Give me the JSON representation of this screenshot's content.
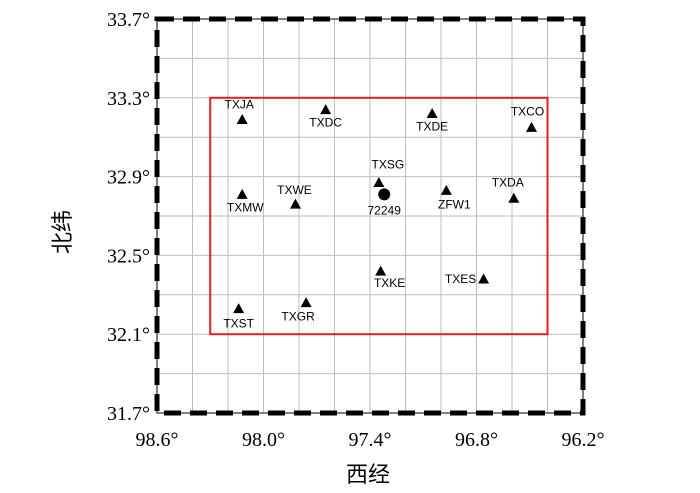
{
  "chart_data": {
    "type": "scatter",
    "xlabel": "西经",
    "ylabel": "北纬",
    "xlim": [
      98.6,
      96.2
    ],
    "ylim": [
      31.7,
      33.7
    ],
    "x_ticks": [
      "98.6°",
      "98.0°",
      "97.4°",
      "96.8°",
      "96.2°"
    ],
    "y_ticks": [
      "33.7°",
      "33.3°",
      "32.9°",
      "32.5°",
      "32.1°",
      "31.7°"
    ],
    "grid": true,
    "study_area": {
      "lon_min": 96.4,
      "lon_max": 98.3,
      "lat_min": 32.1,
      "lat_max": 33.3,
      "color": "#e0211a"
    },
    "stations": [
      {
        "name": "TXJA",
        "lon": 98.12,
        "lat": 33.19,
        "label": "TXJA",
        "marker": "triangle"
      },
      {
        "name": "TXDC",
        "lon": 97.65,
        "lat": 33.24,
        "label": "TXDC",
        "marker": "triangle"
      },
      {
        "name": "TXDE",
        "lon": 97.05,
        "lat": 33.22,
        "label": "TXDE",
        "marker": "triangle"
      },
      {
        "name": "TXCO",
        "lon": 96.49,
        "lat": 33.15,
        "label": "TXCO",
        "marker": "triangle"
      },
      {
        "name": "TXSG",
        "lon": 97.35,
        "lat": 32.87,
        "label": "TXSG",
        "marker": "triangle"
      },
      {
        "name": "72249",
        "lon": 97.32,
        "lat": 32.81,
        "label": "72249",
        "marker": "circle"
      },
      {
        "name": "ZFW1",
        "lon": 96.97,
        "lat": 32.83,
        "label": "ZFW1",
        "marker": "triangle"
      },
      {
        "name": "TXDA",
        "lon": 96.59,
        "lat": 32.79,
        "label": "TXDA",
        "marker": "triangle"
      },
      {
        "name": "TXMW",
        "lon": 98.12,
        "lat": 32.81,
        "label": "TXMW",
        "marker": "triangle"
      },
      {
        "name": "TXWE",
        "lon": 97.82,
        "lat": 32.76,
        "label": "TXWE",
        "marker": "triangle"
      },
      {
        "name": "TXKE",
        "lon": 97.34,
        "lat": 32.42,
        "label": "TXKE",
        "marker": "triangle"
      },
      {
        "name": "TXES",
        "lon": 96.76,
        "lat": 32.38,
        "label": "TXES",
        "marker": "triangle"
      },
      {
        "name": "TXST",
        "lon": 98.14,
        "lat": 32.23,
        "label": "TXST",
        "marker": "triangle"
      },
      {
        "name": "TXGR",
        "lon": 97.76,
        "lat": 32.26,
        "label": "TXGR",
        "marker": "triangle"
      }
    ]
  }
}
